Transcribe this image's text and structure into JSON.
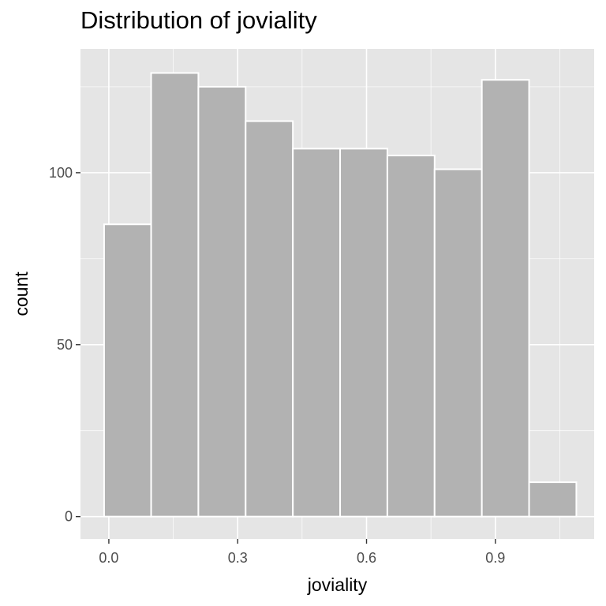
{
  "chart_data": {
    "type": "histogram",
    "title": "Distribution of joviality",
    "xlabel": "joviality",
    "ylabel": "count",
    "x_ticks": [
      0.0,
      0.3,
      0.6,
      0.9
    ],
    "x_tick_labels": [
      "0.0",
      "0.3",
      "0.6",
      "0.9"
    ],
    "y_ticks": [
      0,
      50,
      100
    ],
    "y_tick_labels": [
      "0",
      "50",
      "100"
    ],
    "xlim": [
      -0.066,
      1.13
    ],
    "ylim": [
      -6.5,
      136
    ],
    "bins": [
      {
        "x0": -0.011,
        "x1": 0.0985,
        "count": 85
      },
      {
        "x0": 0.0985,
        "x1": 0.2085,
        "count": 129
      },
      {
        "x0": 0.2085,
        "x1": 0.3185,
        "count": 125
      },
      {
        "x0": 0.3185,
        "x1": 0.4285,
        "count": 115
      },
      {
        "x0": 0.4285,
        "x1": 0.5385,
        "count": 107
      },
      {
        "x0": 0.5385,
        "x1": 0.6485,
        "count": 107
      },
      {
        "x0": 0.6485,
        "x1": 0.7585,
        "count": 105
      },
      {
        "x0": 0.7585,
        "x1": 0.8685,
        "count": 101
      },
      {
        "x0": 0.8685,
        "x1": 0.9785,
        "count": 127
      },
      {
        "x0": 0.9785,
        "x1": 1.0885,
        "count": 10
      }
    ],
    "fill_color": "#b2b2b2",
    "bar_edge_color": "#ffffff",
    "panel_color": "#e5e5e5",
    "grid": true,
    "grid_color": "#ffffff"
  }
}
